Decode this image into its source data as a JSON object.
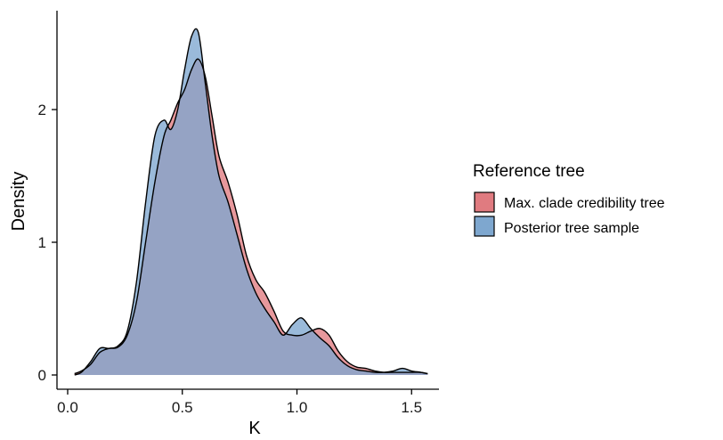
{
  "chart_data": {
    "type": "area",
    "title": "",
    "xlabel": "K",
    "ylabel": "Density",
    "xlim": [
      0.0,
      1.6
    ],
    "ylim": [
      -0.08,
      2.75
    ],
    "xticks": [
      0.0,
      0.5,
      1.0,
      1.5
    ],
    "xtick_labels": [
      "0.0",
      "0.5",
      "1.0",
      "1.5"
    ],
    "yticks": [
      0,
      1,
      2
    ],
    "ytick_labels": [
      "0",
      "1",
      "2"
    ],
    "grid": false,
    "legend": {
      "title": "Reference tree",
      "position": "right"
    },
    "series": [
      {
        "name": "Max. clade credibility tree",
        "color": "#e07b80",
        "x": [
          0.03,
          0.06,
          0.1,
          0.14,
          0.18,
          0.22,
          0.26,
          0.3,
          0.34,
          0.38,
          0.42,
          0.45,
          0.48,
          0.51,
          0.54,
          0.57,
          0.6,
          0.63,
          0.66,
          0.7,
          0.74,
          0.78,
          0.82,
          0.86,
          0.9,
          0.94,
          0.98,
          1.02,
          1.06,
          1.1,
          1.14,
          1.18,
          1.22,
          1.26,
          1.3,
          1.34,
          1.38,
          1.42,
          1.46,
          1.5,
          1.54,
          1.57
        ],
        "values": [
          0.01,
          0.03,
          0.08,
          0.17,
          0.2,
          0.21,
          0.3,
          0.55,
          1.0,
          1.45,
          1.8,
          1.92,
          2.05,
          2.15,
          2.3,
          2.38,
          2.25,
          1.95,
          1.65,
          1.45,
          1.2,
          0.9,
          0.72,
          0.62,
          0.48,
          0.33,
          0.3,
          0.3,
          0.33,
          0.35,
          0.3,
          0.18,
          0.1,
          0.06,
          0.05,
          0.03,
          0.02,
          0.02,
          0.02,
          0.02,
          0.02,
          0.01
        ]
      },
      {
        "name": "Posterior tree sample",
        "color": "#7ea7cf",
        "x": [
          0.03,
          0.06,
          0.1,
          0.14,
          0.18,
          0.22,
          0.26,
          0.3,
          0.34,
          0.38,
          0.42,
          0.45,
          0.48,
          0.51,
          0.54,
          0.57,
          0.6,
          0.63,
          0.66,
          0.7,
          0.74,
          0.78,
          0.82,
          0.86,
          0.9,
          0.94,
          0.98,
          1.02,
          1.06,
          1.1,
          1.14,
          1.18,
          1.22,
          1.26,
          1.3,
          1.34,
          1.38,
          1.42,
          1.46,
          1.5,
          1.54,
          1.57
        ],
        "values": [
          0.0,
          0.02,
          0.1,
          0.2,
          0.2,
          0.22,
          0.33,
          0.7,
          1.3,
          1.8,
          1.92,
          1.85,
          2.0,
          2.3,
          2.55,
          2.58,
          2.2,
          1.8,
          1.5,
          1.3,
          1.05,
          0.8,
          0.62,
          0.5,
          0.4,
          0.3,
          0.38,
          0.43,
          0.35,
          0.28,
          0.22,
          0.13,
          0.07,
          0.04,
          0.03,
          0.02,
          0.02,
          0.03,
          0.05,
          0.03,
          0.02,
          0.01
        ]
      }
    ]
  }
}
